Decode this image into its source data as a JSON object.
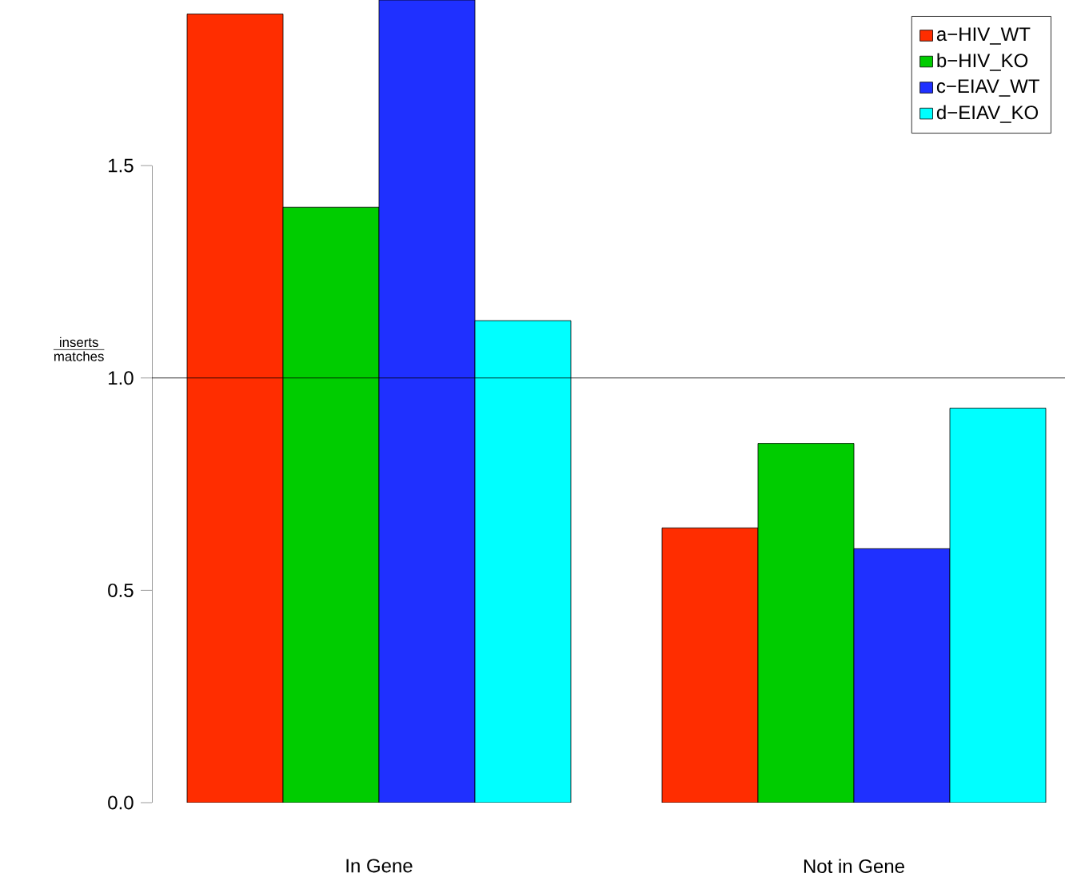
{
  "chart_data": {
    "type": "bar",
    "ylabel": "\\frac{\\mathrm{inserts}}{\\mathrm{matches}}",
    "categories": [
      "In Gene",
      "Not in Gene"
    ],
    "series": [
      {
        "name": "a−HIV_WT",
        "color": "#ff2d00",
        "values": [
          1.857,
          0.647
        ]
      },
      {
        "name": "b−HIV_KO",
        "color": "#00cc00",
        "values": [
          1.402,
          0.846
        ]
      },
      {
        "name": "c−EIAV_WT",
        "color": "#1f30ff",
        "values": [
          1.89,
          0.598
        ]
      },
      {
        "name": "d−EIAV_KO",
        "color": "#00ffff",
        "values": [
          1.135,
          0.929
        ]
      }
    ],
    "ylim": [
      0,
      1.89
    ],
    "yticks": [
      {
        "value": 0,
        "label": "0.0"
      },
      {
        "value": 0.5,
        "label": "0.5"
      },
      {
        "value": 1,
        "label": "1.0"
      },
      {
        "value": 1.5,
        "label": "1.5"
      }
    ],
    "ref_lines": [
      {
        "axis": "y",
        "value": 1,
        "color": "#000000"
      }
    ],
    "legend": "top right"
  }
}
